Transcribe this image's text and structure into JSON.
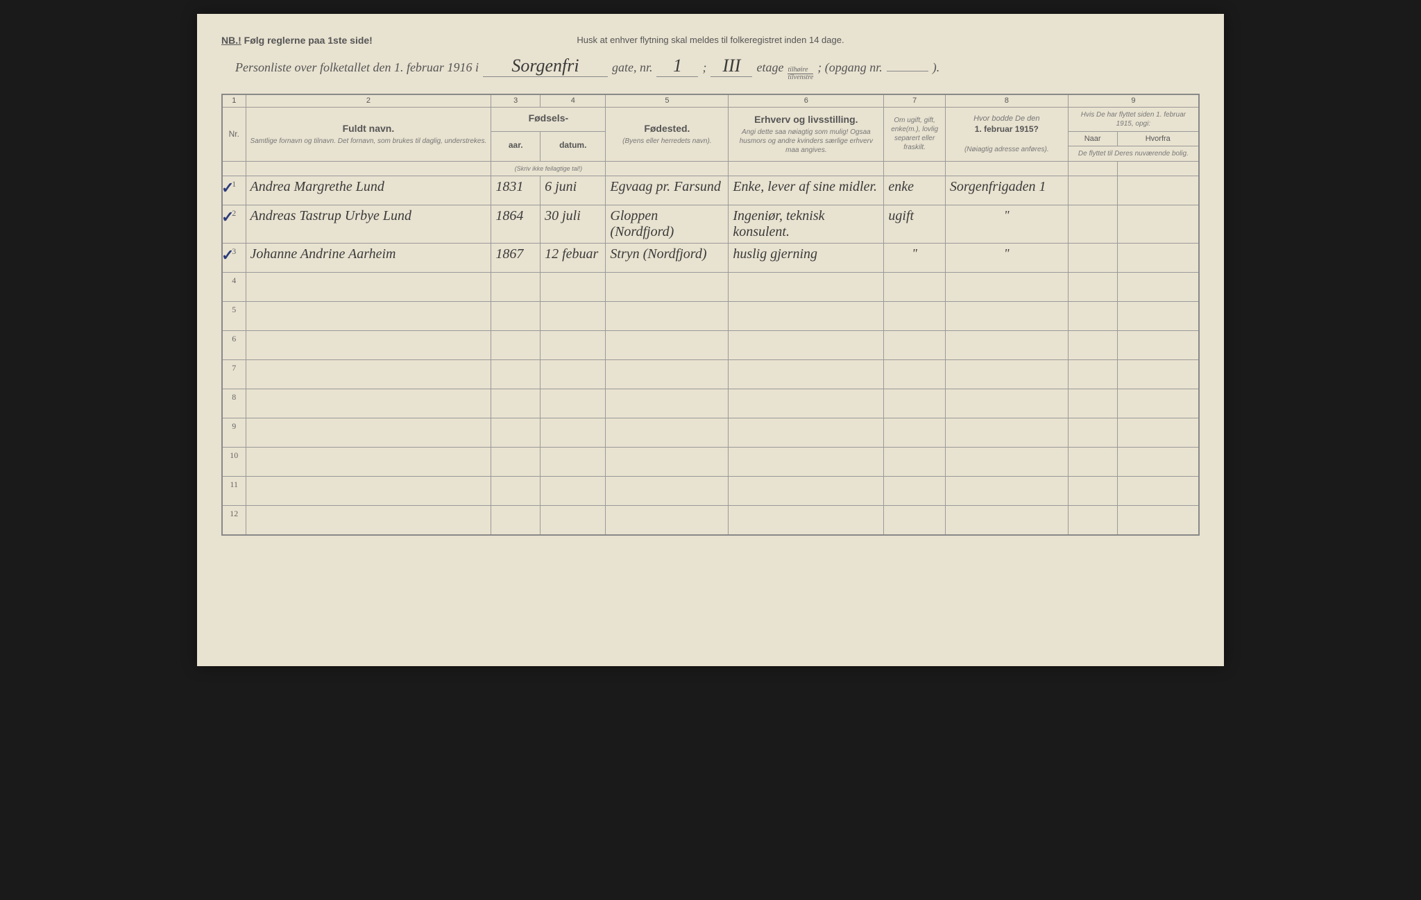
{
  "header": {
    "nb_prefix": "NB.!",
    "nb_text": "Følg reglerne paa 1ste side!",
    "reminder": "Husk at enhver flytning skal meldes til folkeregistret inden 14 dage.",
    "title_prefix": "Personliste over folketallet den 1. februar 1916 i",
    "street": "Sorgenfri",
    "gate_label": "gate, nr.",
    "gate_nr": "1",
    "floor_nr": "III",
    "etage_label": "etage",
    "side_top": "tilhøire",
    "side_bot": "tilvenstre",
    "opgang_label": "; (opgang nr.",
    "opgang_nr": "",
    "closing": ")."
  },
  "columns": {
    "nums": [
      "1",
      "2",
      "3",
      "4",
      "5",
      "6",
      "7",
      "8",
      "9"
    ],
    "nr": "Nr.",
    "name_main": "Fuldt navn.",
    "name_sub": "Samtlige fornavn og tilnavn. Det fornavn, som brukes til daglig, understrekes.",
    "birth_main": "Fødsels-",
    "year": "aar.",
    "date": "datum.",
    "birth_note": "(Skriv ikke feilagtige tal!)",
    "place_main": "Fødested.",
    "place_sub": "(Byens eller herredets navn).",
    "occ_main": "Erhverv og livsstilling.",
    "occ_sub": "Angi dette saa nøiagtig som mulig! Ogsaa husmors og andre kvinders særlige erhverv maa angives.",
    "mar_sub": "Om ugift, gift, enke(m.), lovlig separert eller fraskilt.",
    "prev_main": "Hvor bodde De den 1. februar 1915?",
    "prev_sub": "(Nøiagtig adresse anføres).",
    "moved_top": "Hvis De har flyttet siden 1. februar 1915, opgi:",
    "naar": "Naar",
    "hvorfra": "Hvorfra",
    "moved_sub": "De flyttet til Deres nuværende bolig."
  },
  "rows": [
    {
      "nr": "1",
      "name": "Andrea Margrethe Lund",
      "year": "1831",
      "date": "6 juni",
      "place": "Egvaag pr. Farsund",
      "occupation": "Enke, lever af sine midler.",
      "marital": "enke",
      "prev1915": "Sorgenfrigaden 1",
      "checked": true
    },
    {
      "nr": "2",
      "name": "Andreas Tastrup Urbye Lund",
      "year": "1864",
      "date": "30 juli",
      "place": "Gloppen (Nordfjord)",
      "occupation": "Ingeniør, teknisk konsulent.",
      "marital": "ugift",
      "prev1915": "\"",
      "checked": true
    },
    {
      "nr": "3",
      "name": "Johanne Andrine Aarheim",
      "year": "1867",
      "date": "12 febuar",
      "place": "Stryn (Nordfjord)",
      "occupation": "huslig gjerning",
      "marital": "\"",
      "prev1915": "\"",
      "checked": true
    }
  ],
  "empty_rows": [
    "4",
    "5",
    "6",
    "7",
    "8",
    "9",
    "10",
    "11",
    "12"
  ],
  "colors": {
    "paper": "#e8e2d0",
    "ink": "#3a3a3a",
    "print": "#555",
    "check": "#2a3a7a",
    "border": "#888"
  }
}
